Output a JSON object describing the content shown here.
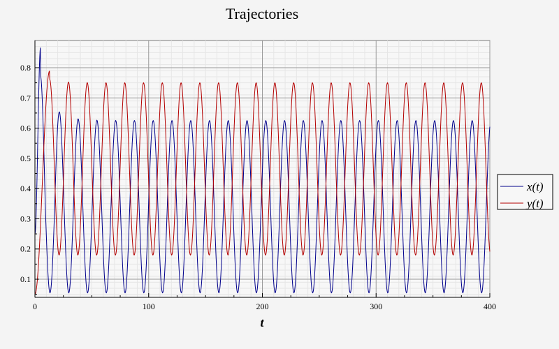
{
  "chart_data": {
    "type": "line",
    "title": "Trajectories",
    "xlabel": "t",
    "ylabel": "",
    "xlim": [
      0,
      400
    ],
    "ylim": [
      0.04,
      0.89
    ],
    "x_ticks": [
      0,
      100,
      200,
      300,
      400
    ],
    "y_ticks": [
      0.1,
      0.2,
      0.3,
      0.4,
      0.5,
      0.6,
      0.7,
      0.8
    ],
    "grid": true,
    "legend_position": "right",
    "series": [
      {
        "name": "x(t)",
        "color": "#00008b",
        "initial_value": 0.25,
        "first_peak": {
          "t": 5,
          "value": 0.87
        },
        "steady_max": 0.625,
        "steady_min": 0.055,
        "period": 16.5
      },
      {
        "name": "y(t)",
        "color": "#b30000",
        "initial_value": 0.05,
        "first_peak": {
          "t": 13,
          "value": 0.79
        },
        "steady_max": 0.75,
        "steady_min": 0.18,
        "period": 16.5
      }
    ]
  }
}
